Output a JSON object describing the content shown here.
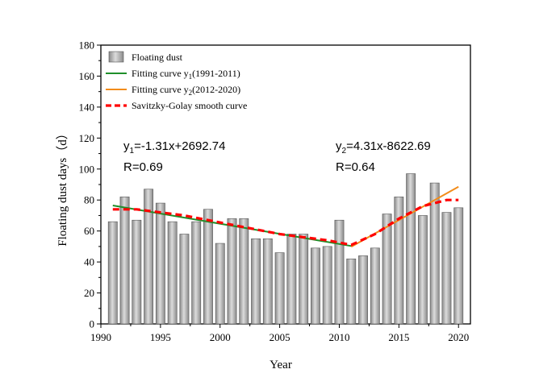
{
  "chart_data": {
    "type": "bar",
    "xlabel": "Year",
    "ylabel": "Floating dust days（d）",
    "xlim": [
      1990,
      2021
    ],
    "ylim": [
      0,
      180
    ],
    "x_ticks": [
      1990,
      1995,
      2000,
      2005,
      2010,
      2015,
      2020
    ],
    "y_ticks": [
      0,
      20,
      40,
      60,
      80,
      100,
      120,
      140,
      160,
      180
    ],
    "bars": {
      "name": "Floating dust",
      "color": "#a6a6a6",
      "x": [
        1991,
        1992,
        1993,
        1994,
        1995,
        1996,
        1997,
        1998,
        1999,
        2000,
        2001,
        2002,
        2003,
        2004,
        2005,
        2006,
        2007,
        2008,
        2009,
        2010,
        2011,
        2012,
        2013,
        2014,
        2015,
        2016,
        2017,
        2018,
        2019,
        2020
      ],
      "values": [
        66,
        82,
        67,
        87,
        78,
        66,
        58,
        66,
        74,
        52,
        68,
        68,
        55,
        55,
        46,
        58,
        58,
        49,
        50,
        67,
        42,
        44,
        49,
        71,
        82,
        97,
        70,
        91,
        72,
        75
      ]
    },
    "series": [
      {
        "name": "Fitting curve y1(1991-2011)",
        "color": "#1f8f2a",
        "style": "solid",
        "x": [
          1991,
          2011
        ],
        "y": [
          76.5,
          50.3
        ]
      },
      {
        "name": "Fitting curve y2(2012-2020)",
        "color": "#f28c1a",
        "style": "solid",
        "x": [
          2011,
          2020
        ],
        "y": [
          49.8,
          88.6
        ]
      },
      {
        "name": "Savitzky-Golay smooth curve",
        "color": "#ff0000",
        "style": "dashed",
        "x": [
          1991,
          1993,
          1995,
          1997,
          1999,
          2001,
          2003,
          2005,
          2007,
          2009,
          2011,
          2013,
          2015,
          2017,
          2019,
          2020
        ],
        "y": [
          74,
          74,
          72,
          70,
          67,
          64,
          61,
          58,
          56,
          54,
          51,
          58,
          68,
          76,
          80,
          80
        ]
      }
    ],
    "legend": {
      "position": "top-left",
      "entries": [
        {
          "main": "Floating dust",
          "sub": "",
          "tail": ""
        },
        {
          "main": "Fitting curve y",
          "sub": "1",
          "tail": "(1991-2011)"
        },
        {
          "main": "Fitting curve y",
          "sub": "2",
          "tail": "(2012-2020)"
        },
        {
          "main": "Savitzky-Golay smooth curve",
          "sub": "",
          "tail": ""
        }
      ]
    },
    "annotations": [
      {
        "eq_main": "y",
        "eq_sub": "1",
        "eq_tail": "=-1.31x+2692.74",
        "r": "R=0.69"
      },
      {
        "eq_main": "y",
        "eq_sub": "2",
        "eq_tail": "=4.31x-8622.69",
        "r": "R=0.64"
      }
    ]
  }
}
